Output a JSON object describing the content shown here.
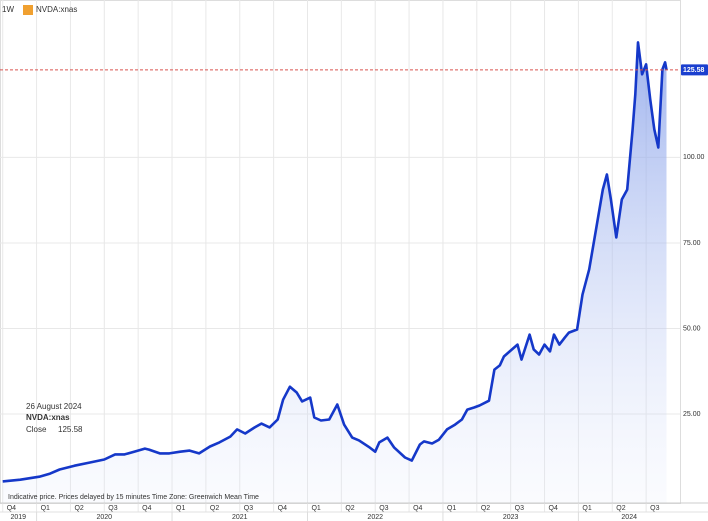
{
  "chart_data": {
    "type": "area",
    "interval": "1W",
    "series": [
      {
        "name": "NVDA:xnas",
        "color": "#1538c9",
        "x": [
          2019.75,
          2019.88,
          2020.02,
          2020.1,
          2020.17,
          2020.28,
          2020.39,
          2020.5,
          2020.58,
          2020.65,
          2020.72,
          2020.8,
          2020.83,
          2020.91,
          2020.98,
          2021.06,
          2021.13,
          2021.2,
          2021.28,
          2021.35,
          2021.43,
          2021.48,
          2021.54,
          2021.61,
          2021.66,
          2021.72,
          2021.78,
          2021.82,
          2021.87,
          2021.92,
          2021.96,
          2022.02,
          2022.05,
          2022.1,
          2022.16,
          2022.22,
          2022.27,
          2022.33,
          2022.38,
          2022.46,
          2022.5,
          2022.53,
          2022.59,
          2022.64,
          2022.72,
          2022.77,
          2022.83,
          2022.86,
          2022.92,
          2022.97,
          2023.03,
          2023.09,
          2023.14,
          2023.18,
          2023.23,
          2023.27,
          2023.34,
          2023.38,
          2023.42,
          2023.45,
          2023.51,
          2023.55,
          2023.58,
          2023.64,
          2023.67,
          2023.71,
          2023.75,
          2023.79,
          2023.82,
          2023.86,
          2023.9,
          2023.93,
          2023.99,
          2024.03,
          2024.08,
          2024.13,
          2024.18,
          2024.21,
          2024.24,
          2024.28,
          2024.32,
          2024.36,
          2024.4,
          2024.42,
          2024.44,
          2024.47,
          2024.5,
          2024.53,
          2024.56,
          2024.59,
          2024.62,
          2024.64,
          2024.65
        ],
        "values": [
          5.3,
          5.8,
          6.7,
          7.6,
          8.8,
          9.9,
          10.8,
          11.7,
          13.2,
          13.2,
          14.0,
          14.9,
          14.6,
          13.5,
          13.5,
          14.0,
          14.3,
          13.5,
          15.5,
          16.7,
          18.4,
          20.5,
          19.3,
          21.1,
          22.2,
          21.1,
          23.4,
          29.2,
          33.0,
          31.3,
          28.7,
          29.8,
          24.0,
          23.1,
          23.4,
          27.8,
          21.9,
          18.1,
          17.3,
          15.2,
          14.0,
          16.7,
          18.1,
          15.2,
          12.3,
          11.4,
          16.1,
          17.0,
          16.4,
          17.5,
          20.5,
          21.9,
          23.4,
          26.3,
          26.9,
          27.5,
          28.9,
          38.0,
          39.2,
          41.8,
          43.9,
          45.3,
          40.9,
          48.2,
          43.9,
          42.4,
          45.3,
          43.3,
          48.2,
          45.3,
          47.4,
          48.8,
          49.7,
          59.9,
          67.3,
          78.9,
          90.6,
          95.0,
          87.7,
          76.6,
          87.7,
          90.6,
          108.2,
          118.4,
          133.6,
          124.3,
          127.2,
          117.0,
          108.2,
          102.9,
          125.7,
          127.8,
          125.58
        ]
      }
    ],
    "last_price_color": "#d9534f",
    "xlim": [
      2019.73,
      2024.75
    ],
    "ylim": [
      -1,
      146
    ],
    "yticks": [
      {
        "value": 25,
        "label": "25.00"
      },
      {
        "value": 50,
        "label": "50.00"
      },
      {
        "value": 75,
        "label": "75.00"
      },
      {
        "value": 100,
        "label": "100.00"
      }
    ],
    "xticks": [
      {
        "value": 2019.75,
        "label": "Q4"
      },
      {
        "value": 2020,
        "label": "Q1"
      },
      {
        "value": 2020.25,
        "label": "Q2"
      },
      {
        "value": 2020.5,
        "label": "Q3"
      },
      {
        "value": 2020.75,
        "label": "Q4"
      },
      {
        "value": 2021,
        "label": "Q1"
      },
      {
        "value": 2021.25,
        "label": "Q2"
      },
      {
        "value": 2021.5,
        "label": "Q3"
      },
      {
        "value": 2021.75,
        "label": "Q4"
      },
      {
        "value": 2022,
        "label": "Q1"
      },
      {
        "value": 2022.25,
        "label": "Q2"
      },
      {
        "value": 2022.5,
        "label": "Q3"
      },
      {
        "value": 2022.75,
        "label": "Q4"
      },
      {
        "value": 2023,
        "label": "Q1"
      },
      {
        "value": 2023.25,
        "label": "Q2"
      },
      {
        "value": 2023.5,
        "label": "Q3"
      },
      {
        "value": 2023.75,
        "label": "Q4"
      },
      {
        "value": 2024,
        "label": "Q1"
      },
      {
        "value": 2024.25,
        "label": "Q2"
      },
      {
        "value": 2024.5,
        "label": "Q3"
      }
    ],
    "year_ticks": [
      2019,
      2020,
      2021,
      2022,
      2023,
      2024
    ],
    "grid": true,
    "tooltip": {
      "date": "26 August 2024",
      "field": "Close"
    },
    "footnote": "Indicative price. Prices delayed by 15 minutes   Time Zone: Greenwich Mean Time"
  }
}
